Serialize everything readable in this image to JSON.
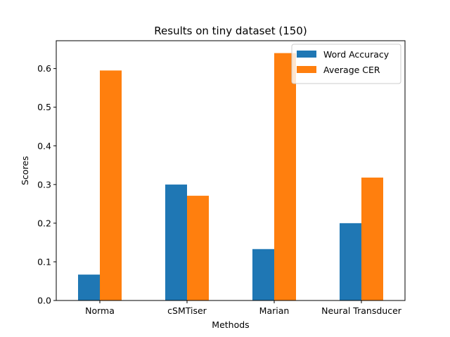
{
  "chart_data": {
    "type": "bar",
    "title": "Results on tiny dataset (150)",
    "xlabel": "Methods",
    "ylabel": "Scores",
    "categories": [
      "Norma",
      "cSMTiser",
      "Marian",
      "Neural Transducer"
    ],
    "series": [
      {
        "name": "Word Accuracy",
        "color": "#1f77b4",
        "values": [
          0.067,
          0.3,
          0.133,
          0.2
        ]
      },
      {
        "name": "Average CER",
        "color": "#ff7f0e",
        "values": [
          0.595,
          0.271,
          0.64,
          0.318
        ]
      }
    ],
    "ylim": [
      0,
      0.672
    ],
    "yticks": [
      "0.0",
      "0.1",
      "0.2",
      "0.3",
      "0.4",
      "0.5",
      "0.6"
    ],
    "grid": false,
    "legend_position": "top-right"
  }
}
